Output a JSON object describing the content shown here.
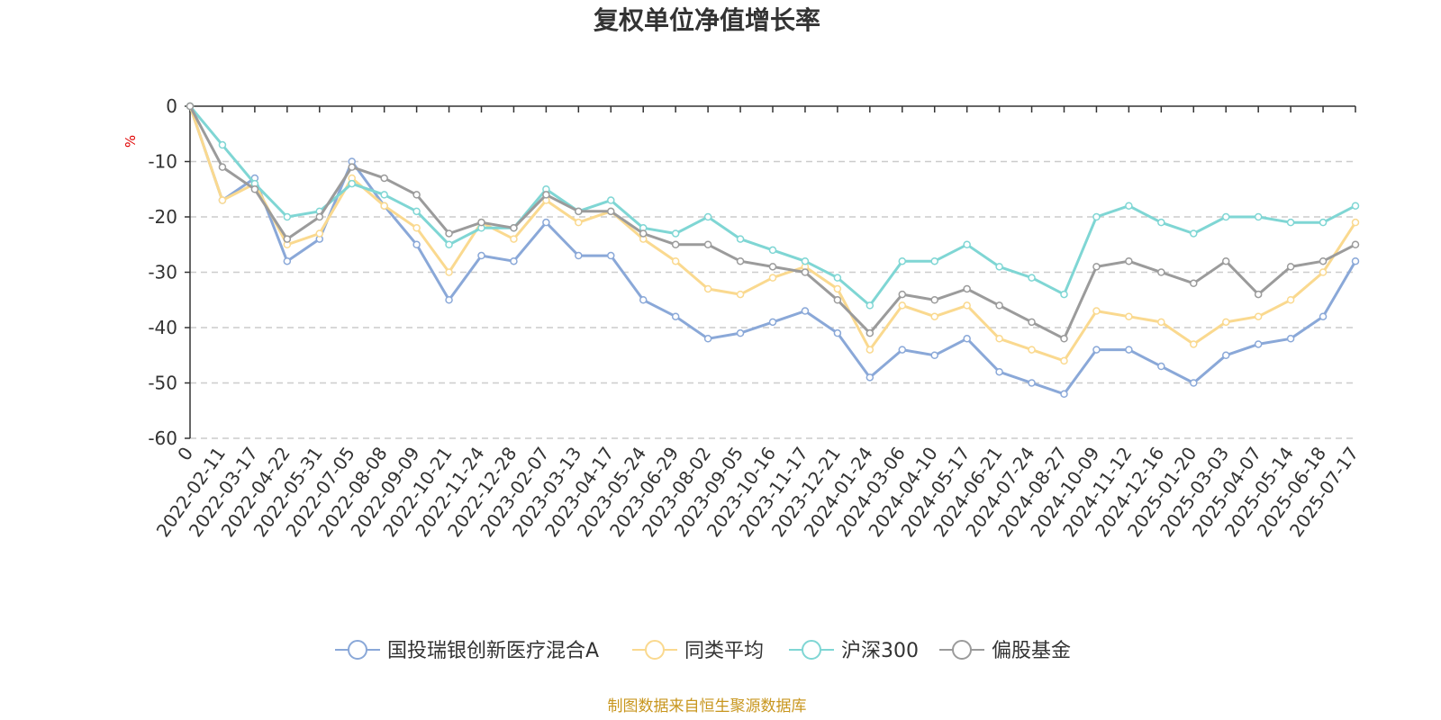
{
  "chart_data": {
    "type": "line",
    "title": "复权单位净值增长率",
    "ylabel": "%",
    "xlabel": "",
    "ylim": [
      -60,
      0
    ],
    "yticks": [
      0,
      -10,
      -20,
      -30,
      -40,
      -50,
      -60
    ],
    "grid": "horizontal dashed",
    "legend_position": "bottom",
    "source": "制图数据来自恒生聚源数据库",
    "categories": [
      "0",
      "2022-02-11",
      "2022-03-17",
      "2022-04-22",
      "2022-05-31",
      "2022-07-05",
      "2022-08-08",
      "2022-09-09",
      "2022-10-21",
      "2022-11-24",
      "2022-12-28",
      "2023-02-07",
      "2023-03-13",
      "2023-04-17",
      "2023-05-24",
      "2023-06-29",
      "2023-08-02",
      "2023-09-05",
      "2023-10-16",
      "2023-11-17",
      "2023-12-21",
      "2024-01-24",
      "2024-03-06",
      "2024-04-10",
      "2024-05-17",
      "2024-06-21",
      "2024-07-24",
      "2024-08-27",
      "2024-10-09",
      "2024-11-12",
      "2024-12-16",
      "2025-01-20",
      "2025-03-03",
      "2025-04-07",
      "2025-05-14",
      "2025-06-18",
      "2025-07-17"
    ],
    "series": [
      {
        "name": "国投瑞银创新医疗混合A",
        "color": "#8aa8d8",
        "values": [
          0,
          -17,
          -13,
          -28,
          -24,
          -10,
          -18,
          -25,
          -35,
          -27,
          -28,
          -21,
          -27,
          -27,
          -35,
          -38,
          -42,
          -41,
          -39,
          -37,
          -41,
          -49,
          -44,
          -45,
          -42,
          -48,
          -50,
          -52,
          -44,
          -44,
          -47,
          -50,
          -45,
          -43,
          -42,
          -38,
          -28
        ]
      },
      {
        "name": "同类平均",
        "color": "#fad98f",
        "values": [
          0,
          -17,
          -14,
          -25,
          -23,
          -13,
          -18,
          -22,
          -30,
          -21,
          -24,
          -17,
          -21,
          -19,
          -24,
          -28,
          -33,
          -34,
          -31,
          -29,
          -33,
          -44,
          -36,
          -38,
          -36,
          -42,
          -44,
          -46,
          -37,
          -38,
          -39,
          -43,
          -39,
          -38,
          -35,
          -30,
          -21
        ]
      },
      {
        "name": "沪深300",
        "color": "#7fd6d4",
        "values": [
          0,
          -7,
          -14,
          -20,
          -19,
          -14,
          -16,
          -19,
          -25,
          -22,
          -22,
          -15,
          -19,
          -17,
          -22,
          -23,
          -20,
          -24,
          -26,
          -28,
          -31,
          -36,
          -28,
          -28,
          -25,
          -29,
          -31,
          -34,
          -20,
          -18,
          -21,
          -23,
          -20,
          -20,
          -21,
          -21,
          -18
        ]
      },
      {
        "name": "偏股基金",
        "color": "#9b9b9b",
        "values": [
          0,
          -11,
          -15,
          -24,
          -20,
          -11,
          -13,
          -16,
          -23,
          -21,
          -22,
          -16,
          -19,
          -19,
          -23,
          -25,
          -25,
          -28,
          -29,
          -30,
          -35,
          -41,
          -34,
          -35,
          -33,
          -36,
          -39,
          -42,
          -29,
          -28,
          -30,
          -32,
          -28,
          -34,
          -29,
          -28,
          -25
        ]
      }
    ]
  }
}
